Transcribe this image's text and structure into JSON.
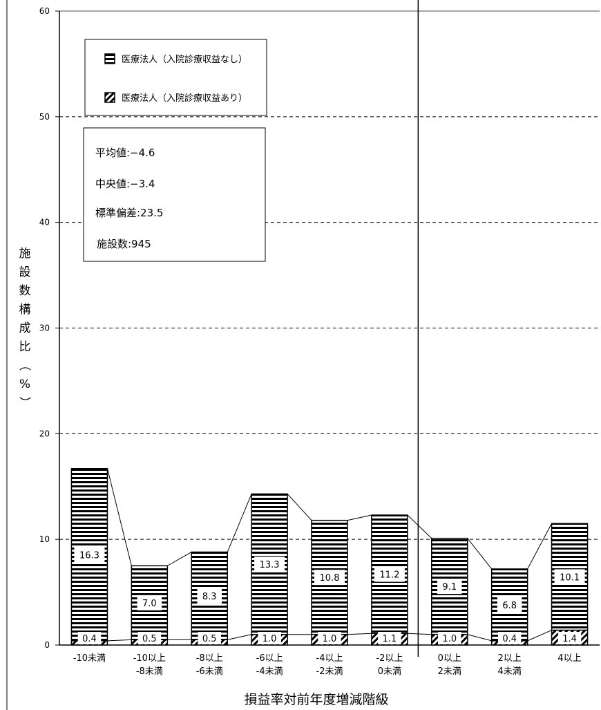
{
  "chart_data": {
    "type": "bar",
    "stacked": true,
    "ylim": [
      0,
      60
    ],
    "yticks": [
      0,
      10,
      20,
      30,
      40,
      50,
      60
    ],
    "grid": "horizontal dashed",
    "ylabel": "施設数構成比（%）",
    "xlabel": "損益率対前年度増減階級",
    "categories": [
      [
        "-10未満"
      ],
      [
        "-10以上",
        "-8未満"
      ],
      [
        "-8以上",
        "-6未満"
      ],
      [
        "-6以上",
        "-4未満"
      ],
      [
        "-4以上",
        "-2未満"
      ],
      [
        "-2以上",
        "0未満"
      ],
      [
        "0以上",
        "2未満"
      ],
      [
        "2以上",
        "4未満"
      ],
      [
        "4以上"
      ]
    ],
    "series": [
      {
        "name": "医療法人（入院診療収益あり）",
        "pattern": "diagonal",
        "values": [
          0.4,
          0.5,
          0.5,
          1.0,
          1.0,
          1.1,
          1.0,
          0.4,
          1.4
        ],
        "labels": [
          "0.4",
          "0.5",
          "0.5",
          "1.0",
          "1.0",
          "1.1",
          "1.0",
          "0.4",
          "1.4"
        ]
      },
      {
        "name": "医療法人（入院診療収益なし）",
        "pattern": "horizontal",
        "values": [
          16.3,
          7.0,
          8.3,
          13.3,
          10.8,
          11.2,
          9.1,
          6.8,
          10.1
        ],
        "labels": [
          "16.3",
          "7.0",
          "8.3",
          "13.3",
          "10.8",
          "11.2",
          "9.1",
          "6.8",
          "10.1"
        ]
      }
    ],
    "legend": {
      "placement": "top-left",
      "items": [
        {
          "label": "医療法人（入院診療収益なし）",
          "pattern": "horizontal"
        },
        {
          "label": "医療法人（入院診療収益あり）",
          "pattern": "diagonal"
        }
      ]
    },
    "stats": [
      "平均値:−4.6",
      "中央値:−3.4",
      "標準偏差:23.5",
      "施設数:945"
    ],
    "divider_after_category": 6
  }
}
